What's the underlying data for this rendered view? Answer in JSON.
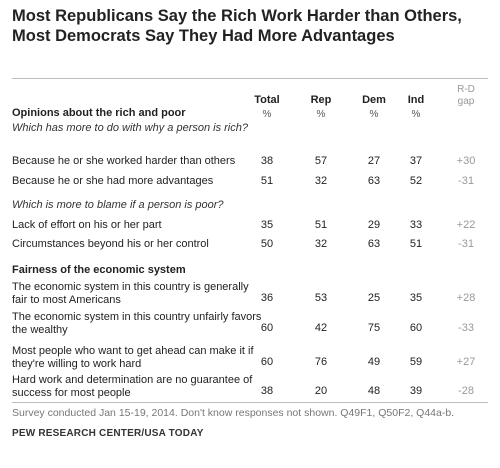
{
  "chart_data": {
    "type": "table",
    "title": "Most Republicans Say the Rich Work Harder than Others, Most Democrats Say They Had More Advantages",
    "columns": [
      {
        "label": "Total",
        "unit": "%"
      },
      {
        "label": "Rep",
        "unit": "%"
      },
      {
        "label": "Dem",
        "unit": "%"
      },
      {
        "label": "Ind",
        "unit": "%"
      }
    ],
    "gap_header": [
      "R-D",
      "gap"
    ],
    "sections": [
      {
        "title": "Opinions about the rich and poor",
        "groups": [
          {
            "question": "Which has more to do with why a person is rich?",
            "rows": [
              {
                "label": "Because he or she worked harder than others",
                "values": [
                  "38",
                  "57",
                  "27",
                  "37"
                ],
                "gap": "+30"
              },
              {
                "label": "Because he or she had more advantages",
                "values": [
                  "51",
                  "32",
                  "63",
                  "52"
                ],
                "gap": "-31"
              }
            ]
          },
          {
            "question": "Which is more to blame if a person is poor?",
            "rows": [
              {
                "label": "Lack of effort on his or her part",
                "values": [
                  "35",
                  "51",
                  "29",
                  "33"
                ],
                "gap": "+22"
              },
              {
                "label": "Circumstances beyond his or her control",
                "values": [
                  "50",
                  "32",
                  "63",
                  "51"
                ],
                "gap": "-31"
              }
            ]
          }
        ]
      },
      {
        "title": "Fairness of the economic system",
        "groups": [
          {
            "question": "",
            "rows": [
              {
                "label": "The economic system in this country is generally fair to most Americans",
                "values": [
                  "36",
                  "53",
                  "25",
                  "35"
                ],
                "gap": "+28"
              },
              {
                "label": "The economic system in this country unfairly favors the wealthy",
                "values": [
                  "60",
                  "42",
                  "75",
                  "60"
                ],
                "gap": "-33"
              },
              {
                "label": "Most people who want to get ahead can make it if they're willing to work hard",
                "values": [
                  "60",
                  "76",
                  "49",
                  "59"
                ],
                "gap": "+27"
              },
              {
                "label": "Hard work and determination are no guarantee of success for most people",
                "values": [
                  "38",
                  "20",
                  "48",
                  "39"
                ],
                "gap": "-28"
              }
            ]
          }
        ]
      }
    ],
    "note": "Survey conducted Jan 15-19, 2014. Don't know responses not shown. Q49F1, Q50F2, Q44a-b.",
    "source": "PEW RESEARCH CENTER/USA TODAY"
  }
}
